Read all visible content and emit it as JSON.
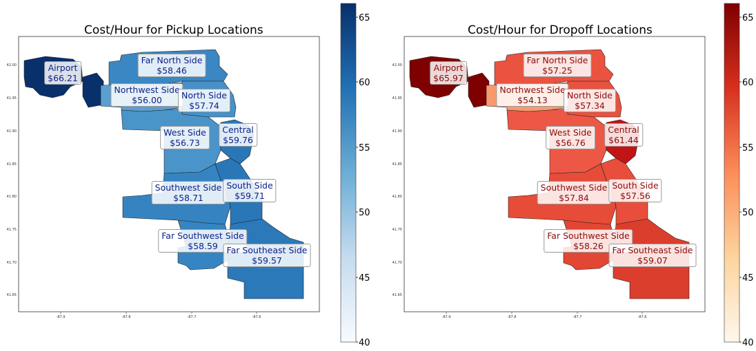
{
  "colorbar": {
    "min": 40,
    "max": 66,
    "ticks": [
      40,
      45,
      50,
      55,
      60,
      65
    ]
  },
  "axes": {
    "x_ticks": [
      "-87.9",
      "-87.8",
      "-87.7",
      "-87.6"
    ],
    "y_ticks": [
      "42.00",
      "41.95",
      "41.90",
      "41.85",
      "41.80",
      "41.75",
      "41.70",
      "41.65"
    ]
  },
  "maps": [
    {
      "id": "pickup",
      "title": "Cost/Hour for Pickup Locations",
      "colormap": "Blues",
      "regions": [
        {
          "name": "Airport",
          "value_label": "$66.21",
          "value": 66.21,
          "color": "#08306b"
        },
        {
          "name": "Far North Side",
          "value_label": "$58.46",
          "value": 58.46,
          "color": "#3a87c3"
        },
        {
          "name": "Northwest Side",
          "value_label": "$56.00",
          "value": 56.0,
          "color": "#5a9fd0"
        },
        {
          "name": "North Side",
          "value_label": "$57.74",
          "value": 57.74,
          "color": "#4791c8"
        },
        {
          "name": "West Side",
          "value_label": "$56.73",
          "value": 56.73,
          "color": "#4a94ca"
        },
        {
          "name": "Central",
          "value_label": "$59.76",
          "value": 59.76,
          "color": "#2a77b8"
        },
        {
          "name": "Southwest Side",
          "value_label": "$58.71",
          "value": 58.71,
          "color": "#3584c1"
        },
        {
          "name": "South Side",
          "value_label": "$59.71",
          "value": 59.71,
          "color": "#2a77b8"
        },
        {
          "name": "Far Southwest Side",
          "value_label": "$58.59",
          "value": 58.59,
          "color": "#3685c2"
        },
        {
          "name": "Far Southeast Side",
          "value_label": "$59.57",
          "value": 59.57,
          "color": "#2b79b9"
        }
      ]
    },
    {
      "id": "dropoff",
      "title": "Cost/Hour for Dropoff Locations",
      "colormap": "OrRd",
      "regions": [
        {
          "name": "Airport",
          "value_label": "$65.97",
          "value": 65.97,
          "color": "#7f0000"
        },
        {
          "name": "Far North Side",
          "value_label": "$57.25",
          "value": 57.25,
          "color": "#ea5340"
        },
        {
          "name": "Northwest Side",
          "value_label": "$54.13",
          "value": 54.13,
          "color": "#f99a6c"
        },
        {
          "name": "North Side",
          "value_label": "$57.34",
          "value": 57.34,
          "color": "#e9523f"
        },
        {
          "name": "West Side",
          "value_label": "$56.76",
          "value": 56.76,
          "color": "#ec5845"
        },
        {
          "name": "Central",
          "value_label": "$61.44",
          "value": 61.44,
          "color": "#c21414"
        },
        {
          "name": "Southwest Side",
          "value_label": "$57.84",
          "value": 57.84,
          "color": "#e64c38"
        },
        {
          "name": "South Side",
          "value_label": "$57.56",
          "value": 57.56,
          "color": "#e84e3b"
        },
        {
          "name": "Far Southwest Side",
          "value_label": "$58.26",
          "value": 58.26,
          "color": "#e24634"
        },
        {
          "name": "Far Southeast Side",
          "value_label": "$59.07",
          "value": 59.07,
          "color": "#dc3e2d"
        }
      ]
    }
  ]
}
